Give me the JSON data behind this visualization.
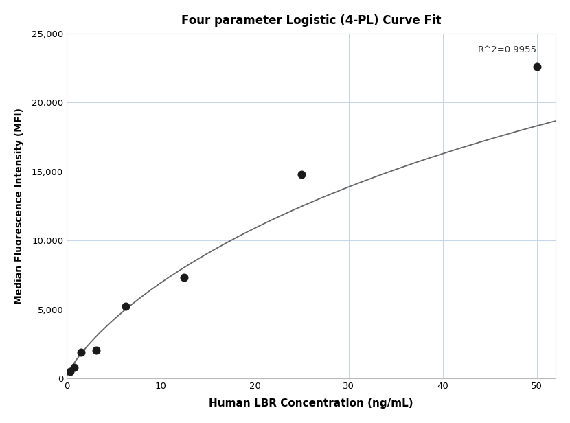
{
  "title": "Four parameter Logistic (4-PL) Curve Fit",
  "xlabel": "Human LBR Concentration (ng/mL)",
  "ylabel": "Median Fluorescence Intensity (MFI)",
  "scatter_x": [
    0.39,
    0.78,
    1.56,
    3.13,
    6.25,
    12.5,
    25.0,
    50.0
  ],
  "scatter_y": [
    500,
    800,
    1900,
    2050,
    5250,
    7300,
    14800,
    22600
  ],
  "xlim": [
    0,
    52
  ],
  "ylim": [
    0,
    25000
  ],
  "xticks": [
    0,
    10,
    20,
    30,
    40,
    50
  ],
  "yticks": [
    0,
    5000,
    10000,
    15000,
    20000,
    25000
  ],
  "r2_text": "R^2=0.9955",
  "r2_x": 50,
  "r2_y": 23500,
  "curve_color": "#666666",
  "scatter_color": "#1a1a1a",
  "grid_color": "#c5d5e8",
  "background_color": "#ffffff"
}
